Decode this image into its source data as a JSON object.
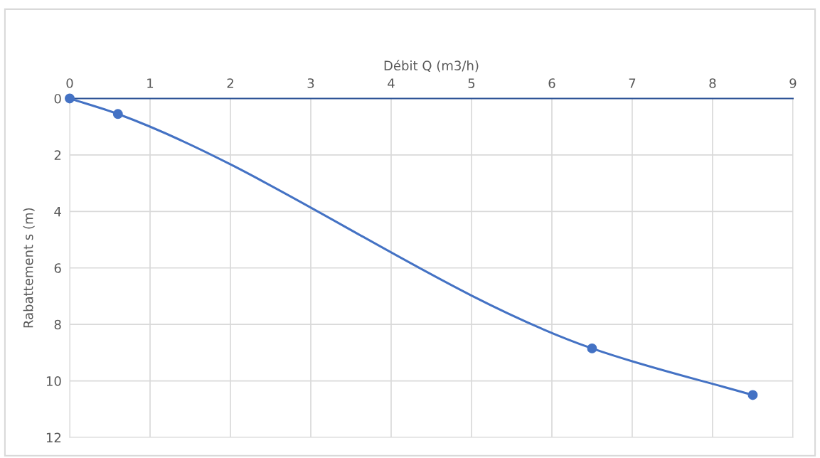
{
  "chart_data": {
    "type": "line",
    "xlabel": "Débit Q (m3/h)",
    "ylabel": "Rabattement s (m)",
    "x": [
      0,
      0.6,
      6.5,
      8.5
    ],
    "series": [
      {
        "color": "#4472c4",
        "values": [
          0,
          0.55,
          8.85,
          10.5
        ]
      }
    ],
    "xlim": [
      0,
      9
    ],
    "xticks": [
      0,
      1,
      2,
      3,
      4,
      5,
      6,
      7,
      8,
      9
    ],
    "ylim": [
      12,
      0
    ],
    "yticks": [
      0,
      2,
      4,
      6,
      8,
      10,
      12
    ],
    "grid": true,
    "marker": "circle",
    "line_style": "solid"
  }
}
